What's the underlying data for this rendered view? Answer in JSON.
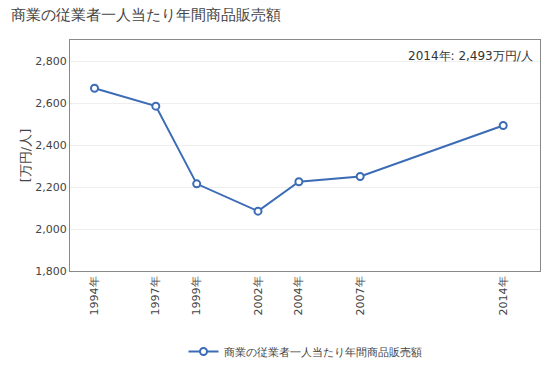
{
  "chart_data": {
    "type": "line",
    "title": "商業の従業者一人当たり年間商品販売額",
    "ylabel": "[万円/人]",
    "annotation": "2014年: 2,493万円/人",
    "x": [
      1994,
      1997,
      1999,
      2002,
      2004,
      2007,
      2014
    ],
    "xlim": [
      1992.8,
      2015.8
    ],
    "xticks": [
      {
        "value": 1994,
        "label": "1994年"
      },
      {
        "value": 1997,
        "label": "1997年"
      },
      {
        "value": 1999,
        "label": "1999年"
      },
      {
        "value": 2002,
        "label": "2002年"
      },
      {
        "value": 2004,
        "label": "2004年"
      },
      {
        "value": 2007,
        "label": "2007年"
      },
      {
        "value": 2014,
        "label": "2014年"
      }
    ],
    "ylim": [
      1800,
      2900
    ],
    "yticks": [
      {
        "value": 1800,
        "label": "1,800"
      },
      {
        "value": 2000,
        "label": "2,000"
      },
      {
        "value": 2200,
        "label": "2,200"
      },
      {
        "value": 2400,
        "label": "2,400"
      },
      {
        "value": 2600,
        "label": "2,600"
      },
      {
        "value": 2800,
        "label": "2,800"
      }
    ],
    "series": [
      {
        "name": "商業の従業者一人当たり年間商品販売額",
        "color": "#3B6CB5",
        "marker": "circle",
        "values": [
          2670,
          2585,
          2215,
          2085,
          2225,
          2250,
          2493
        ]
      }
    ],
    "grid": "y",
    "legend": "bottom"
  }
}
